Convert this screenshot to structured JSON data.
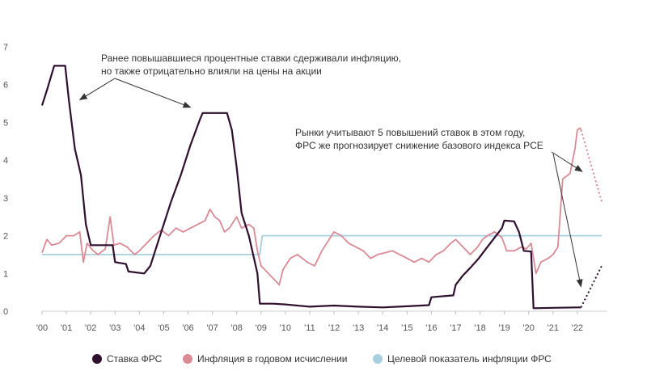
{
  "chart_data": {
    "type": "line",
    "title": "",
    "xlabel": "",
    "ylabel": "",
    "xlim": [
      2000,
      2023.2
    ],
    "ylim": [
      0,
      7
    ],
    "grid": false,
    "legend_position": "bottom",
    "y_ticks": [
      "0",
      "1",
      "2",
      "3",
      "4",
      "5",
      "6",
      "7"
    ],
    "x_ticks": [
      {
        "value": 2000,
        "label": "'00"
      },
      {
        "value": 2001,
        "label": "'01"
      },
      {
        "value": 2002,
        "label": "'02"
      },
      {
        "value": 2003,
        "label": "'03"
      },
      {
        "value": 2004,
        "label": "'04"
      },
      {
        "value": 2005,
        "label": "'05"
      },
      {
        "value": 2006,
        "label": "'06"
      },
      {
        "value": 2007,
        "label": "'07"
      },
      {
        "value": 2008,
        "label": "'08"
      },
      {
        "value": 2009,
        "label": "'09"
      },
      {
        "value": 2010,
        "label": "'10"
      },
      {
        "value": 2011,
        "label": "'11"
      },
      {
        "value": 2012,
        "label": "'12"
      },
      {
        "value": 2013,
        "label": "'13"
      },
      {
        "value": 2014,
        "label": "'14"
      },
      {
        "value": 2015,
        "label": "'15"
      },
      {
        "value": 2016,
        "label": "'16"
      },
      {
        "value": 2017,
        "label": "'17"
      },
      {
        "value": 2018,
        "label": "'18"
      },
      {
        "value": 2019,
        "label": "'19"
      },
      {
        "value": 2020,
        "label": "'20"
      },
      {
        "value": 2021,
        "label": "'21"
      },
      {
        "value": 2022,
        "label": "'22"
      }
    ],
    "series": [
      {
        "name": "Ставка ФРС",
        "color": "#2e0f2e",
        "points": [
          [
            2000.0,
            5.45
          ],
          [
            2000.2,
            5.85
          ],
          [
            2000.5,
            6.5
          ],
          [
            2000.95,
            6.5
          ],
          [
            2001.1,
            5.6
          ],
          [
            2001.35,
            4.3
          ],
          [
            2001.6,
            3.6
          ],
          [
            2001.8,
            2.3
          ],
          [
            2002.0,
            1.75
          ],
          [
            2002.9,
            1.75
          ],
          [
            2003.0,
            1.3
          ],
          [
            2003.45,
            1.25
          ],
          [
            2003.55,
            1.05
          ],
          [
            2004.2,
            1.0
          ],
          [
            2004.45,
            1.2
          ],
          [
            2004.8,
            1.9
          ],
          [
            2005.3,
            2.9
          ],
          [
            2005.7,
            3.6
          ],
          [
            2006.1,
            4.4
          ],
          [
            2006.5,
            5.1
          ],
          [
            2006.6,
            5.25
          ],
          [
            2007.6,
            5.25
          ],
          [
            2007.8,
            4.8
          ],
          [
            2008.0,
            3.8
          ],
          [
            2008.2,
            2.6
          ],
          [
            2008.5,
            2.0
          ],
          [
            2008.85,
            1.0
          ],
          [
            2008.95,
            0.2
          ],
          [
            2009.5,
            0.2
          ],
          [
            2010.0,
            0.18
          ],
          [
            2011.0,
            0.12
          ],
          [
            2012.0,
            0.15
          ],
          [
            2013.0,
            0.12
          ],
          [
            2014.0,
            0.1
          ],
          [
            2015.0,
            0.13
          ],
          [
            2015.9,
            0.16
          ],
          [
            2016.0,
            0.37
          ],
          [
            2016.9,
            0.42
          ],
          [
            2017.0,
            0.7
          ],
          [
            2017.3,
            0.95
          ],
          [
            2017.6,
            1.15
          ],
          [
            2017.95,
            1.4
          ],
          [
            2018.3,
            1.7
          ],
          [
            2018.6,
            1.95
          ],
          [
            2018.9,
            2.2
          ],
          [
            2019.0,
            2.4
          ],
          [
            2019.4,
            2.38
          ],
          [
            2019.6,
            2.1
          ],
          [
            2019.8,
            1.6
          ],
          [
            2020.1,
            1.58
          ],
          [
            2020.2,
            0.08
          ],
          [
            2021.0,
            0.09
          ],
          [
            2022.0,
            0.1
          ],
          [
            2022.15,
            0.1
          ]
        ]
      },
      {
        "name": "Инфляция в годовом исчислении",
        "color": "#d98a95",
        "points": [
          [
            2000.0,
            1.55
          ],
          [
            2000.2,
            1.9
          ],
          [
            2000.4,
            1.75
          ],
          [
            2000.7,
            1.8
          ],
          [
            2001.0,
            2.0
          ],
          [
            2001.3,
            2.0
          ],
          [
            2001.55,
            2.1
          ],
          [
            2001.7,
            1.3
          ],
          [
            2001.85,
            1.8
          ],
          [
            2002.1,
            1.6
          ],
          [
            2002.3,
            1.5
          ],
          [
            2002.6,
            1.65
          ],
          [
            2002.8,
            2.5
          ],
          [
            2002.95,
            1.75
          ],
          [
            2003.2,
            1.8
          ],
          [
            2003.5,
            1.7
          ],
          [
            2003.8,
            1.5
          ],
          [
            2004.0,
            1.6
          ],
          [
            2004.3,
            1.8
          ],
          [
            2004.6,
            2.0
          ],
          [
            2004.9,
            2.15
          ],
          [
            2005.2,
            2.0
          ],
          [
            2005.5,
            2.2
          ],
          [
            2005.8,
            2.1
          ],
          [
            2006.1,
            2.2
          ],
          [
            2006.4,
            2.3
          ],
          [
            2006.7,
            2.4
          ],
          [
            2006.9,
            2.7
          ],
          [
            2007.1,
            2.5
          ],
          [
            2007.3,
            2.4
          ],
          [
            2007.5,
            2.1
          ],
          [
            2007.7,
            2.2
          ],
          [
            2008.0,
            2.5
          ],
          [
            2008.2,
            2.2
          ],
          [
            2008.5,
            2.3
          ],
          [
            2008.7,
            2.2
          ],
          [
            2008.85,
            1.6
          ],
          [
            2009.0,
            1.2
          ],
          [
            2009.3,
            1.0
          ],
          [
            2009.6,
            0.8
          ],
          [
            2009.75,
            0.7
          ],
          [
            2009.9,
            1.1
          ],
          [
            2010.2,
            1.4
          ],
          [
            2010.5,
            1.5
          ],
          [
            2010.9,
            1.3
          ],
          [
            2011.2,
            1.2
          ],
          [
            2011.5,
            1.6
          ],
          [
            2011.8,
            1.9
          ],
          [
            2012.0,
            2.1
          ],
          [
            2012.3,
            2.0
          ],
          [
            2012.6,
            1.8
          ],
          [
            2012.9,
            1.7
          ],
          [
            2013.2,
            1.6
          ],
          [
            2013.5,
            1.4
          ],
          [
            2013.8,
            1.5
          ],
          [
            2014.1,
            1.55
          ],
          [
            2014.4,
            1.6
          ],
          [
            2014.7,
            1.5
          ],
          [
            2015.0,
            1.4
          ],
          [
            2015.3,
            1.3
          ],
          [
            2015.6,
            1.4
          ],
          [
            2015.9,
            1.3
          ],
          [
            2016.2,
            1.5
          ],
          [
            2016.5,
            1.6
          ],
          [
            2016.8,
            1.8
          ],
          [
            2017.0,
            1.9
          ],
          [
            2017.3,
            1.7
          ],
          [
            2017.6,
            1.5
          ],
          [
            2017.9,
            1.7
          ],
          [
            2018.1,
            1.9
          ],
          [
            2018.3,
            2.0
          ],
          [
            2018.6,
            2.1
          ],
          [
            2018.9,
            1.95
          ],
          [
            2019.1,
            1.6
          ],
          [
            2019.4,
            1.6
          ],
          [
            2019.7,
            1.7
          ],
          [
            2019.9,
            1.65
          ],
          [
            2020.1,
            1.8
          ],
          [
            2020.3,
            1.0
          ],
          [
            2020.5,
            1.3
          ],
          [
            2020.8,
            1.4
          ],
          [
            2021.0,
            1.5
          ],
          [
            2021.2,
            1.7
          ],
          [
            2021.4,
            3.5
          ],
          [
            2021.7,
            3.65
          ],
          [
            2021.9,
            4.3
          ],
          [
            2022.0,
            4.8
          ],
          [
            2022.1,
            4.85
          ],
          [
            2022.15,
            4.8
          ]
        ]
      },
      {
        "name": "Целевой показатель инфляции ФРС",
        "color": "#a8cfe0",
        "points": [
          [
            2000.0,
            1.5
          ],
          [
            2008.95,
            1.5
          ],
          [
            2009.05,
            2.0
          ],
          [
            2023.0,
            2.0
          ]
        ]
      }
    ],
    "projections": [
      {
        "series": "Ставка ФРС",
        "color": "#2e0f2e",
        "points": [
          [
            2022.15,
            0.1
          ],
          [
            2023.0,
            1.2
          ]
        ]
      },
      {
        "series": "Инфляция в годовом исчислении",
        "color": "#d98a95",
        "points": [
          [
            2022.15,
            4.8
          ],
          [
            2023.0,
            2.9
          ]
        ]
      }
    ],
    "annotations": [
      {
        "lines": [
          "Ранее повышавшиеся процентные ставки сдерживали инфляцию,",
          "но также отрицательно влияли на цены на акции"
        ],
        "arrow_targets": [
          [
            2001.55,
            5.6
          ],
          [
            2006.1,
            5.4
          ]
        ]
      },
      {
        "lines": [
          "Рынки учитывают 5 повышений ставок в этом году,",
          "ФРС же прогнозирует снижение базового индекса PCE"
        ],
        "arrow_targets": [
          [
            2022.2,
            3.7
          ],
          [
            2022.15,
            0.65
          ]
        ]
      }
    ]
  }
}
